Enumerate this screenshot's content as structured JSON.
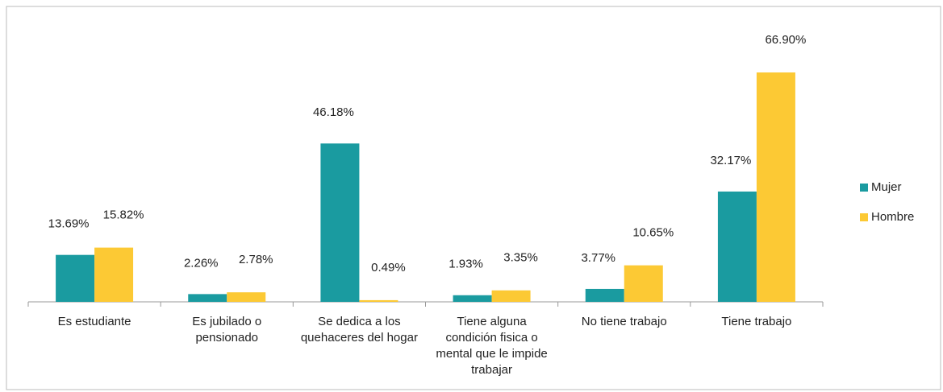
{
  "chart_data": {
    "type": "bar",
    "categories": [
      "Es estudiante",
      "Es jubilado o pensionado",
      "Se dedica a los quehaceres del hogar",
      "Tiene alguna condición fisica o mental que le impide trabajar",
      "No tiene trabajo",
      "Tiene trabajo"
    ],
    "series": [
      {
        "name": "Mujer",
        "color": "#1a9ba0",
        "values": [
          13.69,
          2.26,
          46.18,
          1.93,
          3.77,
          32.17
        ],
        "value_labels": [
          "13.69%",
          "2.26%",
          "46.18%",
          "1.93%",
          "3.77%",
          "32.17%"
        ]
      },
      {
        "name": "Hombre",
        "color": "#fcc934",
        "values": [
          15.82,
          2.78,
          0.49,
          3.35,
          10.65,
          66.9
        ],
        "value_labels": [
          "15.82%",
          "2.78%",
          "0.49%",
          "3.35%",
          "10.65%",
          "66.90%"
        ]
      }
    ],
    "legend": "right"
  }
}
